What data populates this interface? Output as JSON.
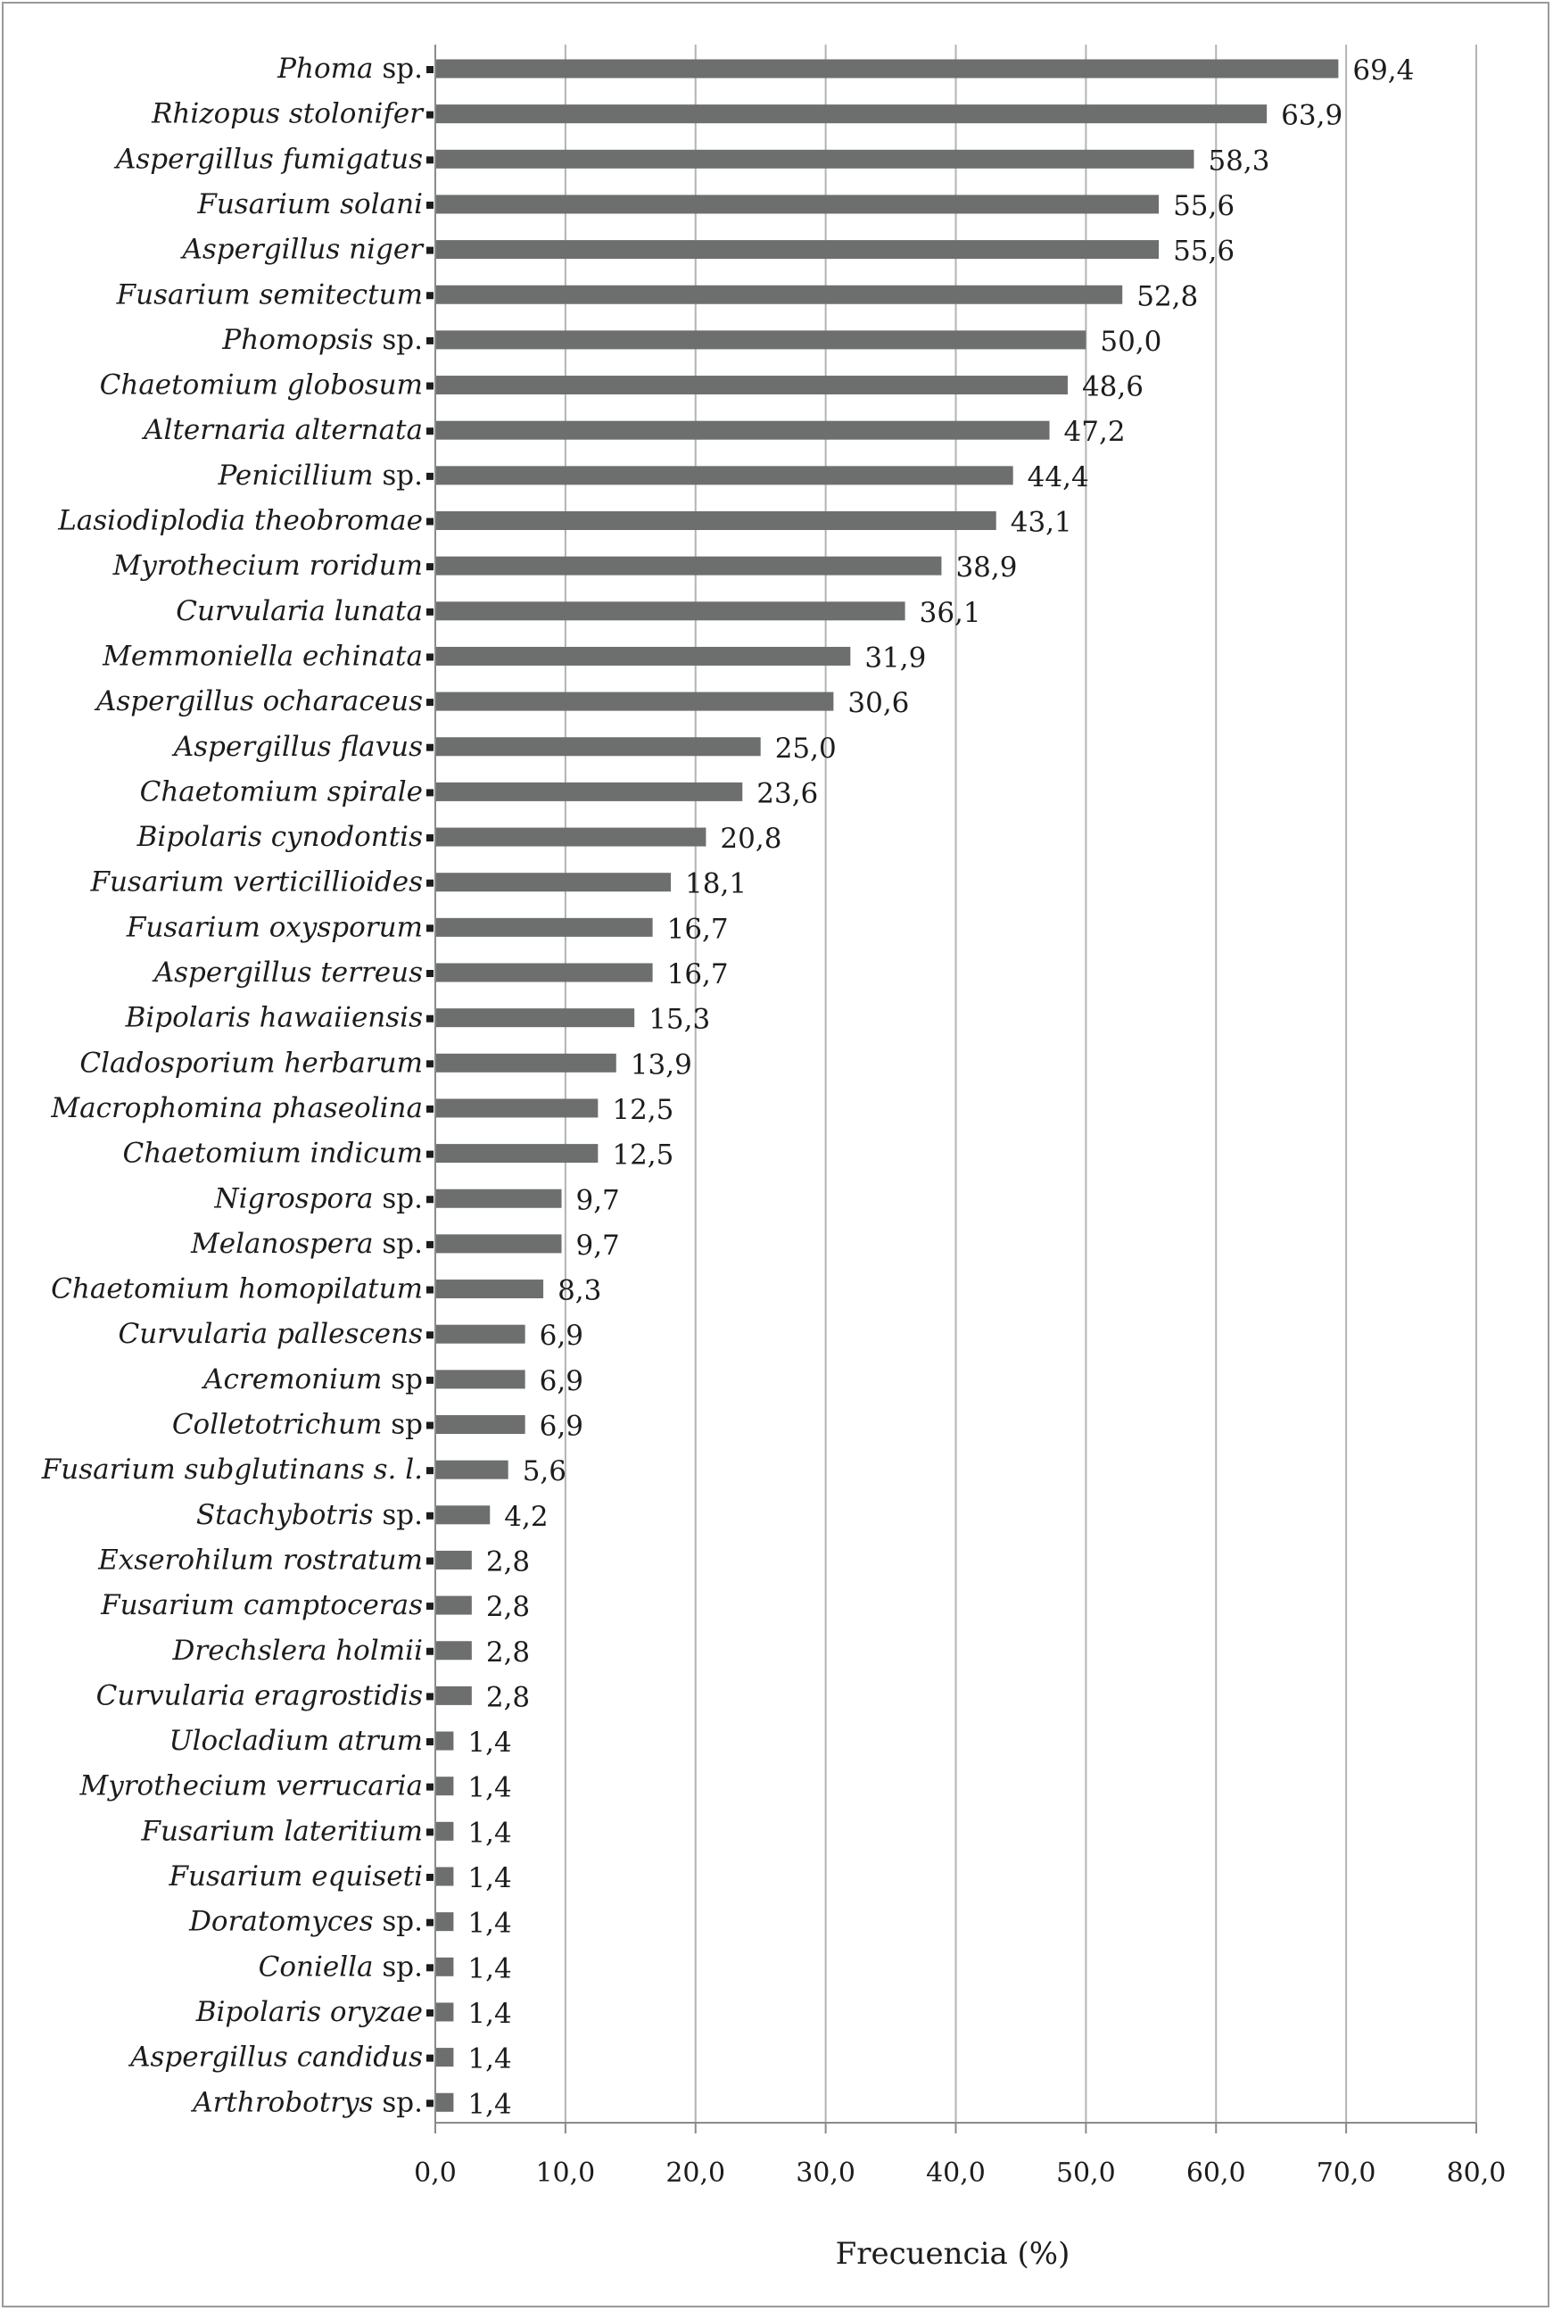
{
  "chart_data": {
    "type": "bar",
    "orientation": "horizontal",
    "title": "",
    "xlabel": "Frecuencia (%)",
    "ylabel": "",
    "xlim": [
      0,
      80
    ],
    "xticks": [
      "0,0",
      "10,0",
      "20,0",
      "30,0",
      "40,0",
      "50,0",
      "60,0",
      "70,0",
      "80,0"
    ],
    "grid": "vertical",
    "legend": "none",
    "bar_color": "#6d6e6e",
    "categories": [
      {
        "name": "Phoma",
        "suffix": " sp."
      },
      {
        "name": "Rhizopus stolonifer",
        "suffix": ""
      },
      {
        "name": "Aspergillus fumigatus",
        "suffix": ""
      },
      {
        "name": "Fusarium solani",
        "suffix": ""
      },
      {
        "name": "Aspergillus niger",
        "suffix": ""
      },
      {
        "name": "Fusarium semitectum",
        "suffix": ""
      },
      {
        "name": "Phomopsis",
        "suffix": " sp."
      },
      {
        "name": "Chaetomium globosum",
        "suffix": ""
      },
      {
        "name": "Alternaria alternata",
        "suffix": ""
      },
      {
        "name": "Penicillium",
        "suffix": " sp."
      },
      {
        "name": "Lasiodiplodia theobromae",
        "suffix": ""
      },
      {
        "name": "Myrothecium roridum",
        "suffix": ""
      },
      {
        "name": "Curvularia lunata",
        "suffix": ""
      },
      {
        "name": "Memmoniella echinata",
        "suffix": ""
      },
      {
        "name": "Aspergillus ocharaceus",
        "suffix": ""
      },
      {
        "name": "Aspergillus flavus",
        "suffix": ""
      },
      {
        "name": "Chaetomium spirale",
        "suffix": ""
      },
      {
        "name": "Bipolaris cynodontis",
        "suffix": ""
      },
      {
        "name": "Fusarium verticillioides",
        "suffix": ""
      },
      {
        "name": "Fusarium oxysporum",
        "suffix": ""
      },
      {
        "name": "Aspergillus terreus",
        "suffix": ""
      },
      {
        "name": "Bipolaris hawaiiensis",
        "suffix": ""
      },
      {
        "name": "Cladosporium herbarum",
        "suffix": ""
      },
      {
        "name": "Macrophomina phaseolina",
        "suffix": ""
      },
      {
        "name": "Chaetomium indicum",
        "suffix": ""
      },
      {
        "name": "Nigrospora",
        "suffix": " sp."
      },
      {
        "name": "Melanospera",
        "suffix": " sp."
      },
      {
        "name": "Chaetomium homopilatum",
        "suffix": ""
      },
      {
        "name": "Curvularia pallescens",
        "suffix": ""
      },
      {
        "name": "Acremonium",
        "suffix": " sp"
      },
      {
        "name": "Colletotrichum",
        "suffix": " sp"
      },
      {
        "name": "Fusarium subglutinans s. l.",
        "suffix": ""
      },
      {
        "name": "Stachybotris",
        "suffix": " sp."
      },
      {
        "name": "Exserohilum rostratum",
        "suffix": ""
      },
      {
        "name": "Fusarium camptoceras",
        "suffix": ""
      },
      {
        "name": "Drechslera holmii",
        "suffix": ""
      },
      {
        "name": "Curvularia eragrostidis",
        "suffix": ""
      },
      {
        "name": "Ulocladium atrum",
        "suffix": ""
      },
      {
        "name": "Myrothecium verrucaria",
        "suffix": ""
      },
      {
        "name": "Fusarium lateritium",
        "suffix": ""
      },
      {
        "name": "Fusarium equiseti",
        "suffix": ""
      },
      {
        "name": "Doratomyces",
        "suffix": " sp."
      },
      {
        "name": "Coniella",
        "suffix": " sp."
      },
      {
        "name": "Bipolaris oryzae",
        "suffix": ""
      },
      {
        "name": "Aspergillus candidus",
        "suffix": ""
      },
      {
        "name": "Arthrobotrys",
        "suffix": " sp."
      }
    ],
    "values": [
      69.4,
      63.9,
      58.3,
      55.6,
      55.6,
      52.8,
      50.0,
      48.6,
      47.2,
      44.4,
      43.1,
      38.9,
      36.1,
      31.9,
      30.6,
      25.0,
      23.6,
      20.8,
      18.1,
      16.7,
      16.7,
      15.3,
      13.9,
      12.5,
      12.5,
      9.7,
      9.7,
      8.3,
      6.9,
      6.9,
      6.9,
      5.6,
      4.2,
      2.8,
      2.8,
      2.8,
      2.8,
      1.4,
      1.4,
      1.4,
      1.4,
      1.4,
      1.4,
      1.4,
      1.4,
      1.4
    ],
    "value_labels": [
      "69,4",
      "63,9",
      "58,3",
      "55,6",
      "55,6",
      "52,8",
      "50,0",
      "48,6",
      "47,2",
      "44,4",
      "43,1",
      "38,9",
      "36,1",
      "31,9",
      "30,6",
      "25,0",
      "23,6",
      "20,8",
      "18,1",
      "16,7",
      "16,7",
      "15,3",
      "13,9",
      "12,5",
      "12,5",
      "9,7",
      "9,7",
      "8,3",
      "6,9",
      "6,9",
      "6,9",
      "5,6",
      "4,2",
      "2,8",
      "2,8",
      "2,8",
      "2,8",
      "1,4",
      "1,4",
      "1,4",
      "1,4",
      "1,4",
      "1,4",
      "1,4",
      "1,4",
      "1,4"
    ]
  }
}
